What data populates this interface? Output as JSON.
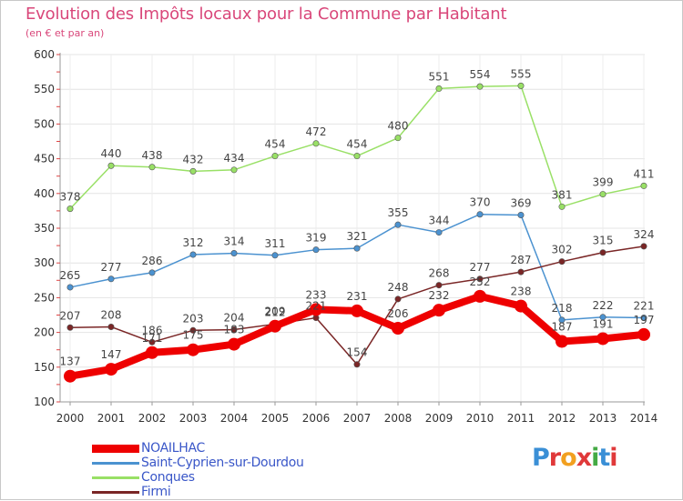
{
  "title": "Evolution des Impôts locaux pour la Commune par Habitant",
  "subtitle": "(en € et par an)",
  "logo": {
    "text": "Proxiti",
    "colors": [
      "#3a8fd6",
      "#e0393a",
      "#f2a020",
      "#e0393a",
      "#44aa44",
      "#3a8fd6",
      "#e0393a"
    ]
  },
  "chart_data": {
    "type": "line",
    "title": "Evolution des Impôts locaux pour la Commune par Habitant",
    "subtitle": "(en € et par an)",
    "xlabel": "",
    "ylabel": "",
    "ylim": [
      100,
      600
    ],
    "yticks": [
      100,
      150,
      200,
      250,
      300,
      350,
      400,
      450,
      500,
      550,
      600
    ],
    "ytick_labels": [
      "100",
      "150",
      "200",
      "250",
      "300",
      "350",
      "400",
      "450",
      "500",
      "550",
      "600"
    ],
    "categories": [
      "2000",
      "2001",
      "2002",
      "2003",
      "2004",
      "2005",
      "2006",
      "2007",
      "2008",
      "2009",
      "2010",
      "2011",
      "2012",
      "2013",
      "2014"
    ],
    "legend_position": "bottom-left",
    "series": [
      {
        "name": "NOAILHAC",
        "color": "#ee0000",
        "emphasis": true,
        "values": [
          137,
          147,
          171,
          175,
          183,
          209,
          233,
          231,
          206,
          232,
          252,
          238,
          187,
          191,
          197
        ],
        "labels": [
          "137",
          "147",
          "171",
          "175",
          "183",
          "209",
          "233",
          "231",
          "206",
          "232",
          "252",
          "238",
          "187",
          "191",
          "197"
        ]
      },
      {
        "name": "Saint-Cyprien-sur-Dourdou",
        "color": "#4b92d0",
        "emphasis": false,
        "values": [
          265,
          277,
          286,
          312,
          314,
          311,
          319,
          321,
          355,
          344,
          370,
          369,
          218,
          222,
          221
        ],
        "labels": [
          "265",
          "277",
          "286",
          "312",
          "314",
          "311",
          "319",
          "321",
          "355",
          "344",
          "370",
          "369",
          "218",
          "222",
          "221"
        ]
      },
      {
        "name": "Conques",
        "color": "#99e066",
        "emphasis": false,
        "values": [
          378,
          440,
          438,
          432,
          434,
          454,
          472,
          454,
          480,
          551,
          554,
          555,
          381,
          399,
          411
        ],
        "labels": [
          "378",
          "440",
          "438",
          "432",
          "434",
          "454",
          "472",
          "454",
          "480",
          "551",
          "554",
          "555",
          "381",
          "399",
          "411"
        ]
      },
      {
        "name": "Firmi",
        "color": "#7a2626",
        "emphasis": false,
        "values": [
          207,
          208,
          186,
          203,
          204,
          212,
          221,
          154,
          248,
          268,
          277,
          287,
          302,
          315,
          324
        ],
        "labels": [
          "207",
          "208",
          "186",
          "203",
          "204",
          "212",
          "221",
          "154",
          "248",
          "268",
          "277",
          "287",
          "302",
          "315",
          "324"
        ]
      }
    ]
  }
}
